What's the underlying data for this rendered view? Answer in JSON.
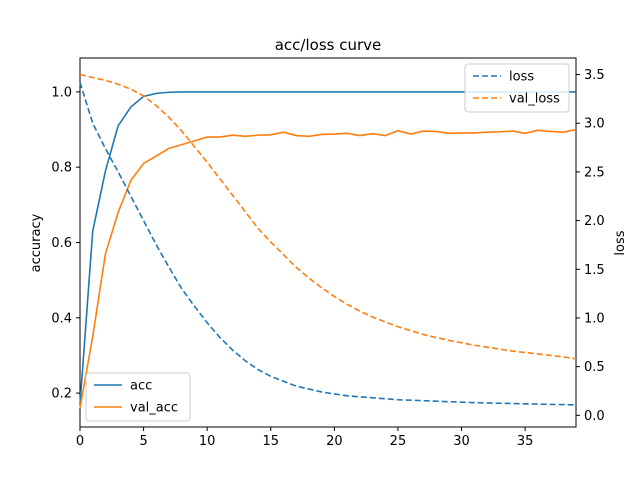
{
  "chart_data": {
    "type": "line",
    "title": "acc/loss curve",
    "xlabel": "",
    "ylabel": "accuracy",
    "y2label": "loss",
    "xlim": [
      0,
      39
    ],
    "ylim": [
      0.11,
      1.09
    ],
    "y2lim": [
      -0.12,
      3.67
    ],
    "xticks": [
      "0",
      "5",
      "10",
      "15",
      "20",
      "25",
      "30",
      "35"
    ],
    "yticks": [
      "0.2",
      "0.4",
      "0.6",
      "0.8",
      "1.0"
    ],
    "y2ticks": [
      "0.0",
      "0.5",
      "1.0",
      "1.5",
      "2.0",
      "2.5",
      "3.0",
      "3.5"
    ],
    "x": [
      0,
      1,
      2,
      3,
      4,
      5,
      6,
      7,
      8,
      9,
      10,
      11,
      12,
      13,
      14,
      15,
      16,
      17,
      18,
      19,
      20,
      21,
      22,
      23,
      24,
      25,
      26,
      27,
      28,
      29,
      30,
      31,
      32,
      33,
      34,
      35,
      36,
      37,
      38,
      39
    ],
    "series": [
      {
        "name": "acc",
        "axis": "left",
        "style": "solid",
        "color": "#1f77b4",
        "values": [
          0.17,
          0.63,
          0.79,
          0.91,
          0.96,
          0.988,
          0.996,
          0.999,
          1.0,
          1.0,
          1.0,
          1.0,
          1.0,
          1.0,
          1.0,
          1.0,
          1.0,
          1.0,
          1.0,
          1.0,
          1.0,
          1.0,
          1.0,
          1.0,
          1.0,
          1.0,
          1.0,
          1.0,
          1.0,
          1.0,
          1.0,
          1.0,
          1.0,
          1.0,
          1.0,
          1.0,
          1.0,
          1.0,
          1.0,
          1.0
        ]
      },
      {
        "name": "val_acc",
        "axis": "left",
        "style": "solid",
        "color": "#ff7f0e",
        "values": [
          0.16,
          0.35,
          0.57,
          0.68,
          0.765,
          0.81,
          0.83,
          0.85,
          0.86,
          0.87,
          0.88,
          0.88,
          0.885,
          0.882,
          0.885,
          0.886,
          0.893,
          0.884,
          0.882,
          0.887,
          0.888,
          0.89,
          0.884,
          0.889,
          0.884,
          0.897,
          0.888,
          0.896,
          0.895,
          0.89,
          0.891,
          0.891,
          0.893,
          0.894,
          0.896,
          0.89,
          0.898,
          0.895,
          0.893,
          0.9
        ]
      },
      {
        "name": "loss",
        "axis": "right",
        "style": "dashed",
        "color": "#1f77b4",
        "values": [
          3.42,
          3.0,
          2.74,
          2.5,
          2.25,
          2.0,
          1.75,
          1.52,
          1.3,
          1.12,
          0.95,
          0.8,
          0.67,
          0.56,
          0.47,
          0.4,
          0.35,
          0.3,
          0.27,
          0.24,
          0.22,
          0.2,
          0.19,
          0.18,
          0.17,
          0.16,
          0.155,
          0.15,
          0.145,
          0.14,
          0.135,
          0.13,
          0.127,
          0.124,
          0.121,
          0.118,
          0.115,
          0.112,
          0.11,
          0.108
        ]
      },
      {
        "name": "val_loss",
        "axis": "right",
        "style": "dashed",
        "color": "#ff7f0e",
        "values": [
          3.5,
          3.47,
          3.44,
          3.4,
          3.35,
          3.28,
          3.18,
          3.06,
          2.92,
          2.76,
          2.6,
          2.43,
          2.26,
          2.09,
          1.92,
          1.78,
          1.65,
          1.52,
          1.41,
          1.31,
          1.22,
          1.14,
          1.07,
          1.01,
          0.96,
          0.91,
          0.87,
          0.83,
          0.8,
          0.77,
          0.745,
          0.72,
          0.7,
          0.68,
          0.66,
          0.645,
          0.63,
          0.615,
          0.6,
          0.58
        ]
      }
    ],
    "legend_left": {
      "placement": "lower-left",
      "entries": [
        "acc",
        "val_acc"
      ]
    },
    "legend_right": {
      "placement": "upper-right",
      "entries": [
        "loss",
        "val_loss"
      ]
    },
    "grid": false
  }
}
